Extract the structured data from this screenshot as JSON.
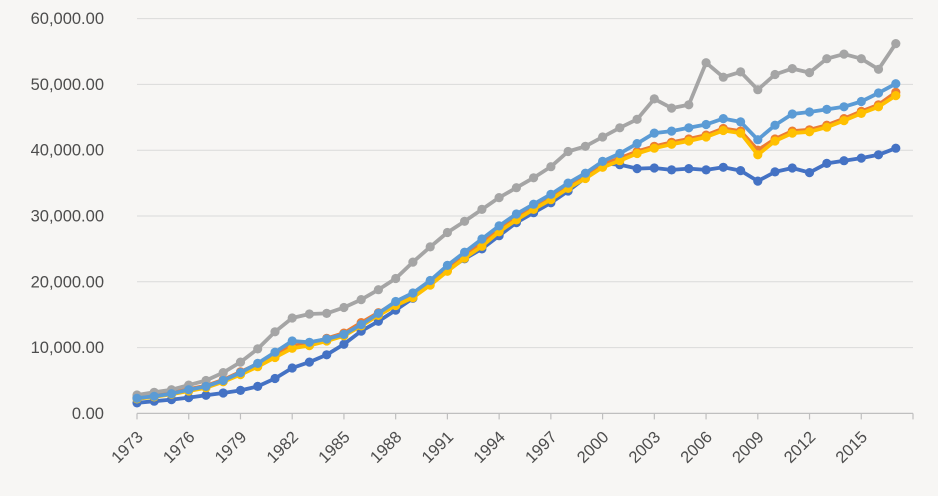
{
  "chart_data": {
    "type": "line",
    "title": "",
    "xlabel": "",
    "ylabel": "",
    "legend": "none",
    "grid": "horizontal",
    "ylim": [
      0,
      60000
    ],
    "y_tick_step": 10000,
    "y_tick_labels": [
      "0.00",
      "10,000.00",
      "20,000.00",
      "30,000.00",
      "40,000.00",
      "50,000.00",
      "60,000.00"
    ],
    "x": [
      1973,
      1974,
      1975,
      1976,
      1977,
      1978,
      1979,
      1980,
      1981,
      1982,
      1983,
      1984,
      1985,
      1986,
      1987,
      1988,
      1989,
      1990,
      1991,
      1992,
      1993,
      1994,
      1995,
      1996,
      1997,
      1998,
      1999,
      2000,
      2001,
      2002,
      2003,
      2004,
      2005,
      2006,
      2007,
      2008,
      2009,
      2010,
      2011,
      2012,
      2013,
      2014,
      2015,
      2016,
      2017
    ],
    "x_tick_labels": [
      "1973",
      "1976",
      "1979",
      "1982",
      "1985",
      "1988",
      "1991",
      "1994",
      "1997",
      "2000",
      "2003",
      "2006",
      "2009",
      "2012",
      "2015"
    ],
    "marker": "circle",
    "series": [
      {
        "name": "series-dark-blue",
        "color": "#4472C4",
        "values": [
          1600,
          1850,
          2100,
          2400,
          2750,
          3100,
          3500,
          4100,
          5300,
          6900,
          7800,
          8900,
          10500,
          12500,
          14000,
          15700,
          17500,
          20000,
          21800,
          23500,
          25000,
          27000,
          29000,
          30500,
          32000,
          33800,
          35800,
          38000,
          37800,
          37200,
          37300,
          37000,
          37200,
          37000,
          37400,
          36900,
          35300,
          36700,
          37300,
          36600,
          38000,
          38400,
          38800,
          39300,
          40300
        ]
      },
      {
        "name": "series-orange",
        "color": "#ED7D31",
        "values": [
          2400,
          2800,
          3100,
          3700,
          4200,
          5100,
          6300,
          7500,
          8900,
          10300,
          10600,
          11400,
          12200,
          13800,
          15300,
          16800,
          18000,
          19800,
          22000,
          24000,
          25800,
          28000,
          29800,
          31300,
          32800,
          34500,
          36000,
          37800,
          38800,
          39800,
          40600,
          41200,
          41700,
          42300,
          43300,
          42900,
          40000,
          41700,
          42900,
          43100,
          43800,
          44800,
          45900,
          46900,
          48800
        ]
      },
      {
        "name": "series-gray",
        "color": "#A5A5A5",
        "values": [
          2800,
          3200,
          3600,
          4300,
          5000,
          6200,
          7800,
          9800,
          12400,
          14500,
          15100,
          15200,
          16100,
          17300,
          18800,
          20500,
          23000,
          25300,
          27500,
          29200,
          31000,
          32800,
          34300,
          35800,
          37500,
          39800,
          40600,
          42000,
          43400,
          44700,
          47800,
          46400,
          46900,
          53300,
          51100,
          51900,
          49200,
          51500,
          52400,
          51800,
          53900,
          54600,
          53900,
          52300,
          56200
        ]
      },
      {
        "name": "series-gold",
        "color": "#FFC000",
        "values": [
          2200,
          2500,
          2900,
          3400,
          3900,
          4800,
          5900,
          7100,
          8500,
          9900,
          10300,
          11000,
          11800,
          13300,
          14900,
          16400,
          17600,
          19500,
          21600,
          23600,
          25400,
          27600,
          29400,
          31000,
          32500,
          34200,
          35700,
          37400,
          38400,
          39500,
          40300,
          40900,
          41400,
          42000,
          43000,
          42600,
          39300,
          41400,
          42600,
          42800,
          43500,
          44500,
          45600,
          46600,
          48300
        ]
      },
      {
        "name": "series-light-blue",
        "color": "#5B9BD5",
        "values": [
          2300,
          2600,
          3000,
          3600,
          4100,
          5000,
          6200,
          7600,
          9300,
          11000,
          10800,
          11300,
          12000,
          13500,
          15200,
          17000,
          18300,
          20200,
          22500,
          24500,
          26500,
          28500,
          30300,
          31800,
          33300,
          35000,
          36500,
          38300,
          39500,
          41000,
          42600,
          42900,
          43400,
          43900,
          44800,
          44300,
          41600,
          43800,
          45500,
          45800,
          46200,
          46600,
          47400,
          48700,
          50100
        ]
      }
    ]
  },
  "colors": {
    "background": "#f7f6f4",
    "gridline": "#dadada",
    "axis_line": "#bfbfbf",
    "tick_mark": "#bfbfbf",
    "label_text": "#4d4d4d"
  }
}
